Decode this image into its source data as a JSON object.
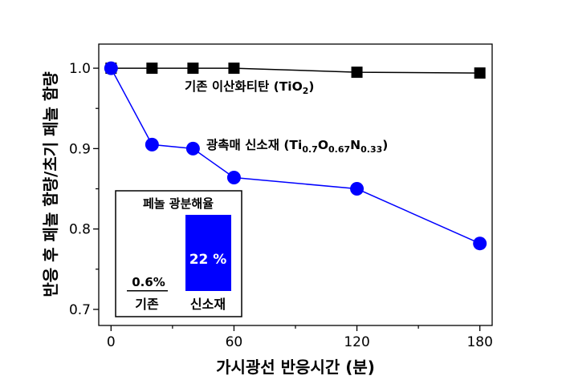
{
  "chart_data": {
    "type": "line",
    "xlabel": "가시광선 반응시간 (분)",
    "ylabel": "반응 후 페놀 함량/초기 페놀 함량",
    "xlim": [
      -6,
      186
    ],
    "ylim": [
      0.68,
      1.03
    ],
    "xticks": [
      0,
      60,
      120,
      180
    ],
    "xticks_minor": [
      30,
      90,
      150
    ],
    "yticks": [
      0.7,
      0.8,
      0.9,
      1.0
    ],
    "yticks_minor": [
      0.75,
      0.85,
      0.95
    ],
    "xtick_labels": [
      "0",
      "60",
      "120",
      "180"
    ],
    "ytick_labels": [
      "0.7",
      "0.8",
      "0.9",
      "1.0"
    ],
    "series": [
      {
        "name": "기존 이산화티탄 (TiO2)",
        "marker": "square",
        "color": "#000000",
        "x": [
          0,
          20,
          40,
          60,
          120,
          180
        ],
        "y": [
          1.0,
          1.0,
          1.0,
          1.0,
          0.995,
          0.994
        ]
      },
      {
        "name": "광촉매 신소재 (Ti0.7O0.67N0.33)",
        "marker": "circle",
        "color": "#0000ff",
        "x": [
          0,
          20,
          40,
          60,
          120,
          180
        ],
        "y": [
          1.0,
          0.905,
          0.9,
          0.864,
          0.85,
          0.782
        ]
      }
    ],
    "annotations": {
      "tio2": {
        "prefix": "기존 이산화티탄 (TiO",
        "sub": "2",
        "suffix": ")"
      },
      "new": {
        "prefix": "광촉매 신소재 (Ti",
        "sub1": "0.7",
        "mid1": "O",
        "sub2": "0.67",
        "mid2": "N",
        "sub3": "0.33",
        "suffix": ")"
      }
    },
    "inset": {
      "title": "페놀 광분해율",
      "type": "bar",
      "categories": [
        "기존",
        "신소재"
      ],
      "values": [
        0.6,
        22
      ],
      "value_labels": [
        "0.6%",
        "22 %"
      ],
      "colors": [
        "#000000",
        "#0000ff"
      ]
    }
  }
}
